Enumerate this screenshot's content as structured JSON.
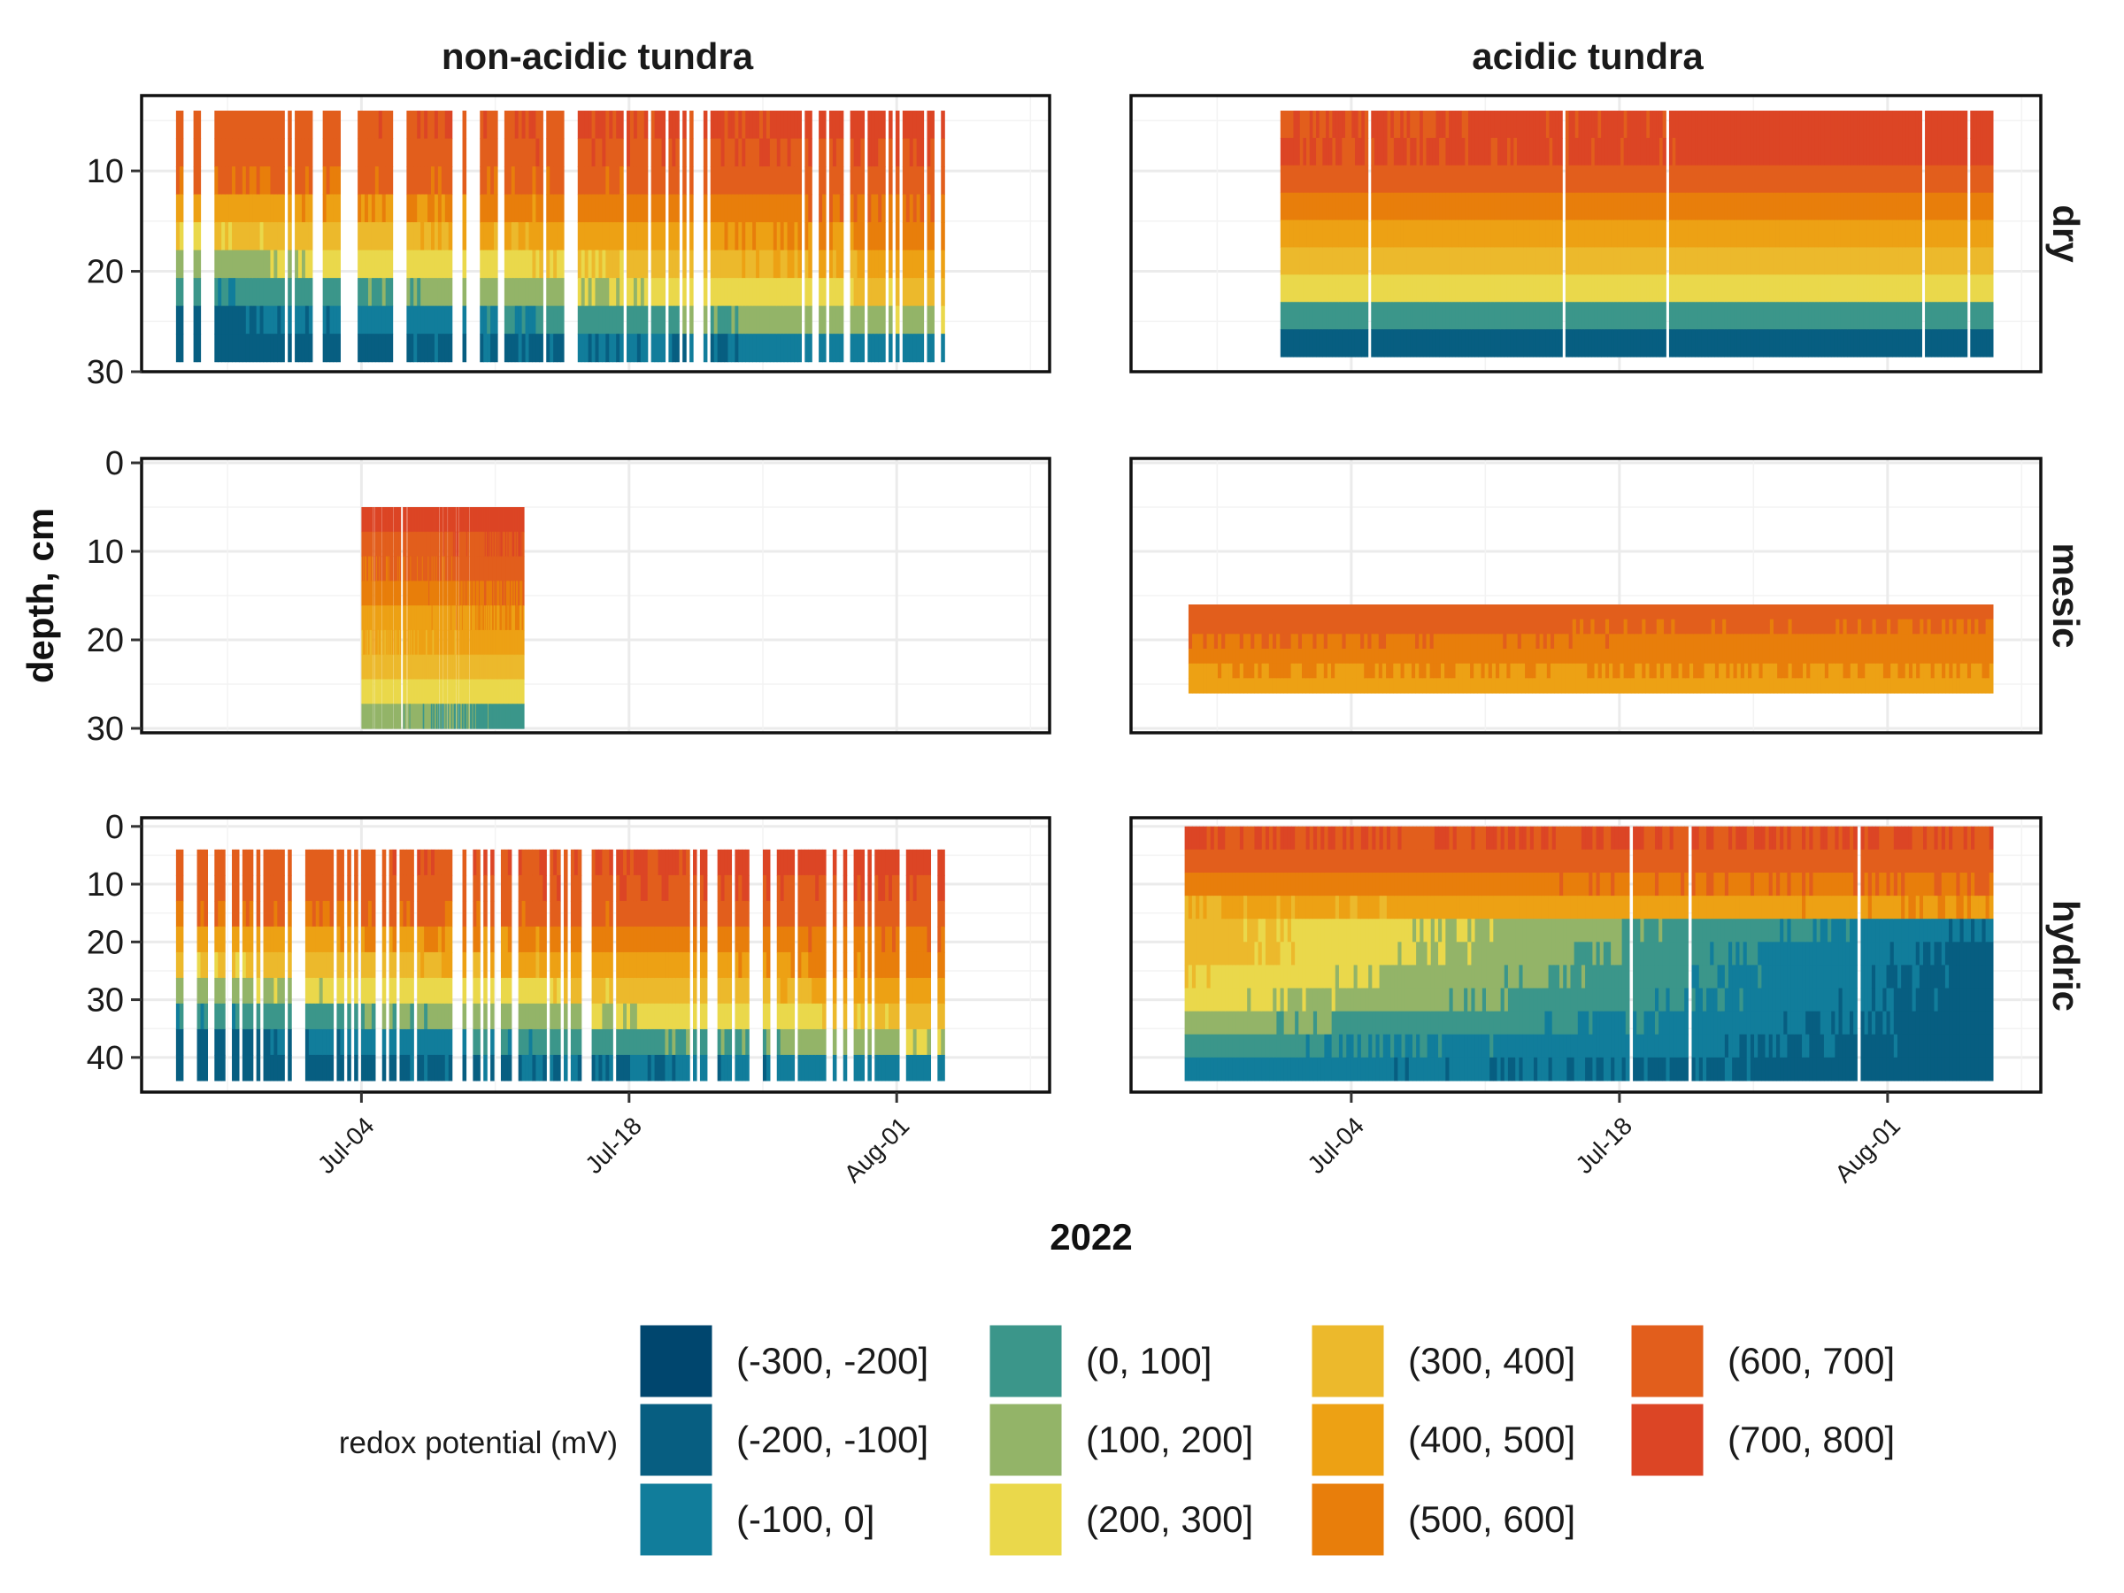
{
  "chart_data": {
    "type": "heatmap",
    "xlabel": "2022",
    "ylabel": "depth, cm",
    "x_ticks": [
      "Jul-04",
      "Jul-18",
      "Aug-01"
    ],
    "x_tick_days": [
      185,
      199,
      213
    ],
    "x_range_days": [
      173.5,
      221.0
    ],
    "columns": [
      "non-acidic tundra",
      "acidic tundra"
    ],
    "rows": [
      {
        "name": "dry",
        "y_range": [
          2.5,
          30
        ],
        "y_ticks": [
          10,
          20,
          30
        ]
      },
      {
        "name": "mesic",
        "y_range": [
          -0.5,
          30.5
        ],
        "y_ticks": [
          0,
          10,
          20,
          30
        ]
      },
      {
        "name": "hydric",
        "y_range": [
          -1.5,
          46
        ],
        "y_ticks": [
          0,
          10,
          20,
          30,
          40
        ]
      }
    ],
    "legend": {
      "title": "redox potential (mV)",
      "entries": [
        {
          "label": "(-300, -200]",
          "color": "#00466e"
        },
        {
          "label": "(-200, -100]",
          "color": "#075e81"
        },
        {
          "label": "(-100, 0]",
          "color": "#117d9b"
        },
        {
          "label": "(0, 100]",
          "color": "#3b968a"
        },
        {
          "label": "(100, 200]",
          "color": "#93b468"
        },
        {
          "label": "(200, 300]",
          "color": "#ead84b"
        },
        {
          "label": "(300, 400]",
          "color": "#ecb92c"
        },
        {
          "label": "(400, 500]",
          "color": "#eda114"
        },
        {
          "label": "(500, 600]",
          "color": "#e87e0b"
        },
        {
          "label": "(600, 700]",
          "color": "#e25e1c"
        },
        {
          "label": "(700, 800]",
          "color": "#dc4525"
        }
      ]
    },
    "panels": [
      {
        "column": "non-acidic tundra",
        "row": "dry",
        "day_range": [
          175.3,
          215.5
        ],
        "depth_range": [
          4,
          29
        ],
        "profile_start": [
          650,
          650,
          600,
          450,
          300,
          150,
          0,
          -150,
          -150
        ],
        "profile_end": [
          750,
          700,
          650,
          600,
          550,
          450,
          350,
          200,
          -50
        ],
        "gap_rate": 0.5
      },
      {
        "column": "acidic tundra",
        "row": "dry",
        "day_range": [
          181.3,
          218.5
        ],
        "depth_range": [
          4,
          28.5
        ],
        "profile_start": [
          700,
          700,
          650,
          550,
          450,
          350,
          250,
          50,
          -150
        ],
        "profile_end": [
          750,
          750,
          650,
          550,
          450,
          350,
          250,
          50,
          -150
        ],
        "gap_rate": 0.05
      },
      {
        "column": "non-acidic tundra",
        "row": "mesic",
        "day_range": [
          185.0,
          193.5
        ],
        "depth_range": [
          5,
          30
        ],
        "profile_start": [
          750,
          650,
          600,
          550,
          450,
          400,
          350,
          250,
          150
        ],
        "profile_end": [
          750,
          700,
          650,
          600,
          500,
          450,
          350,
          250,
          50
        ],
        "gap_rate": 0.1
      },
      {
        "column": "acidic tundra",
        "row": "mesic",
        "day_range": [
          176.5,
          218.5
        ],
        "depth_range": [
          16,
          26
        ],
        "profile_start": [
          650,
          650,
          600,
          550,
          500,
          450
        ],
        "profile_end": [
          650,
          600,
          550,
          550,
          500,
          450
        ],
        "gap_rate": 0.05
      },
      {
        "column": "non-acidic tundra",
        "row": "hydric",
        "day_range": [
          175.3,
          215.5
        ],
        "depth_range": [
          4,
          44
        ],
        "profile_start": [
          650,
          650,
          600,
          450,
          300,
          150,
          0,
          -150,
          -150
        ],
        "profile_end": [
          750,
          700,
          650,
          600,
          550,
          450,
          350,
          200,
          -50
        ],
        "gap_rate": 0.5
      },
      {
        "column": "acidic tundra",
        "row": "hydric",
        "day_range": [
          176.3,
          218.5
        ],
        "depth_range": [
          0,
          44
        ],
        "profile_start": [
          700,
          650,
          550,
          400,
          350,
          350,
          300,
          250,
          150,
          50,
          -50
        ],
        "profile_end": [
          700,
          650,
          600,
          500,
          -100,
          -150,
          -150,
          -150,
          -150,
          -150,
          -150
        ],
        "gap_rate": 0.02
      }
    ]
  }
}
